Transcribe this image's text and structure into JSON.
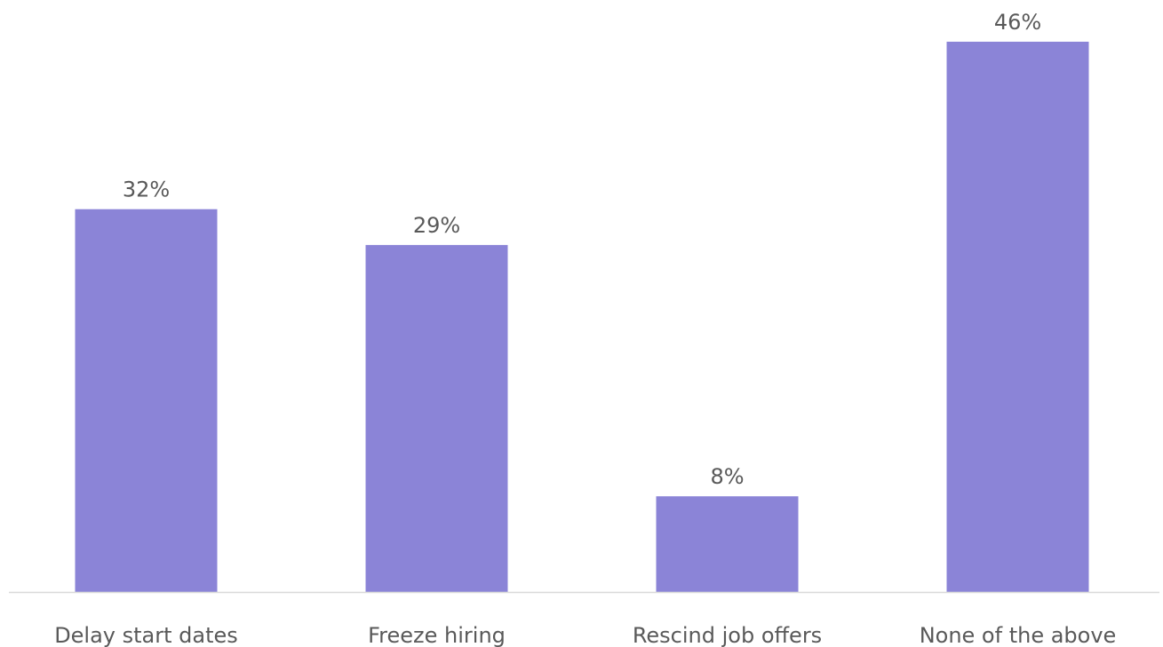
{
  "chart_data": {
    "type": "bar",
    "categories": [
      "Delay start dates",
      "Freeze hiring",
      "Rescind job offers",
      "None of the above"
    ],
    "values": [
      32,
      29,
      8,
      46
    ],
    "data_labels": [
      "32%",
      "29%",
      "8%",
      "46%"
    ],
    "unit": "%",
    "title": "",
    "xlabel": "",
    "ylabel": "",
    "ylim": [
      0,
      46
    ],
    "grid": false,
    "legend": "none",
    "bar_color": "#8b84d7",
    "axis_color": "#d9d9d9",
    "label_color": "#595959"
  }
}
